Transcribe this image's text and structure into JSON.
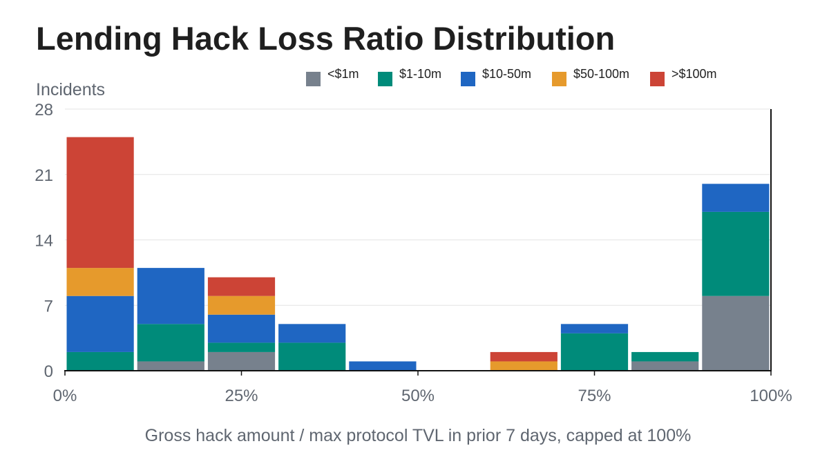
{
  "chart_data": {
    "type": "bar",
    "stacked": true,
    "title": "Lending Hack Loss Ratio Distribution",
    "ylabel": "Incidents",
    "xlabel": "Gross hack amount / max protocol TVL in prior 7 days, capped at 100%",
    "x_bins": [
      "0-10%",
      "10-20%",
      "20-30%",
      "30-40%",
      "40-50%",
      "50-60%",
      "60-70%",
      "70-80%",
      "80-90%",
      "90-100%"
    ],
    "x_ticks": [
      "0%",
      "25%",
      "50%",
      "75%",
      "100%"
    ],
    "x_tick_values": [
      0,
      25,
      50,
      75,
      100
    ],
    "y_ticks": [
      0,
      7,
      14,
      21,
      28
    ],
    "ylim": [
      0,
      28
    ],
    "xlim": [
      0,
      100
    ],
    "bin_width": 10,
    "grid": "horizontal",
    "legend_position": "top",
    "series": [
      {
        "name": "<$1m",
        "color": "#77818d",
        "values": [
          0,
          1,
          2,
          0,
          0,
          0,
          0,
          0,
          1,
          8
        ]
      },
      {
        "name": "$1-10m",
        "color": "#008b7a",
        "values": [
          2,
          4,
          1,
          3,
          0,
          0,
          0,
          4,
          1,
          9
        ]
      },
      {
        "name": "$10-50m",
        "color": "#1f66c2",
        "values": [
          6,
          6,
          3,
          2,
          1,
          0,
          0,
          1,
          0,
          3
        ]
      },
      {
        "name": "$50-100m",
        "color": "#e69a2c",
        "values": [
          3,
          0,
          2,
          0,
          0,
          0,
          1,
          0,
          0,
          0
        ]
      },
      {
        "name": ">$100m",
        "color": "#cc4436",
        "values": [
          14,
          0,
          2,
          0,
          0,
          0,
          1,
          0,
          0,
          0
        ]
      }
    ]
  }
}
